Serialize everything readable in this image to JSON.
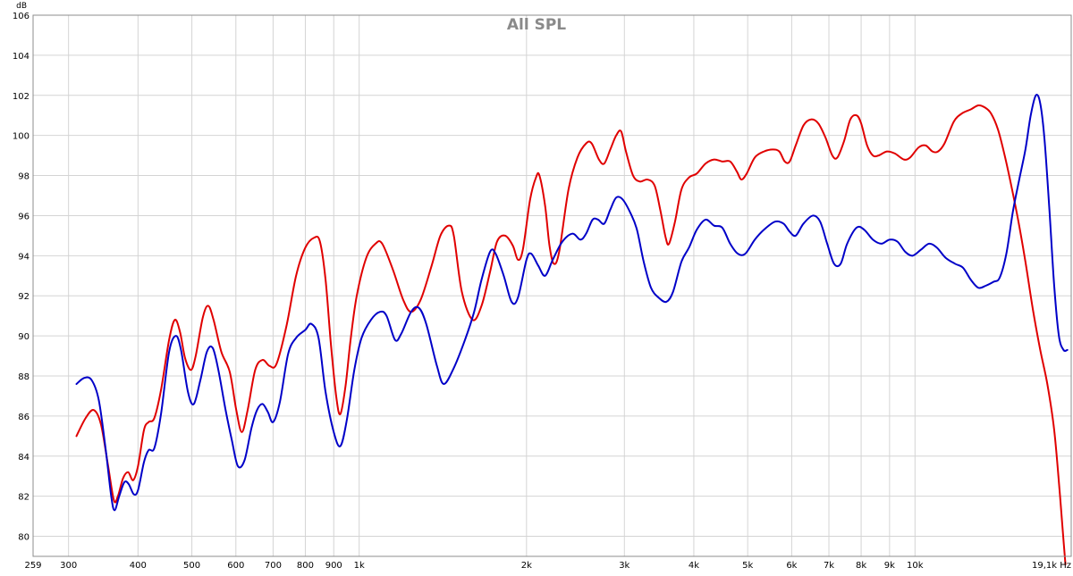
{
  "chart_data": {
    "type": "line",
    "title": "All SPL",
    "ylabel": "dB",
    "x_unit_label": "19,1k Hz",
    "x_scale": "log",
    "xlim": [
      259,
      19100
    ],
    "ylim": [
      79,
      106
    ],
    "grid": true,
    "y_ticks": [
      80,
      82,
      84,
      86,
      88,
      90,
      92,
      94,
      96,
      98,
      100,
      102,
      104,
      106
    ],
    "x_ticks": [
      {
        "value": 259,
        "label": "259"
      },
      {
        "value": 300,
        "label": "300"
      },
      {
        "value": 400,
        "label": "400"
      },
      {
        "value": 500,
        "label": "500"
      },
      {
        "value": 600,
        "label": "600"
      },
      {
        "value": 700,
        "label": "700"
      },
      {
        "value": 800,
        "label": "800"
      },
      {
        "value": 900,
        "label": "900"
      },
      {
        "value": 1000,
        "label": "1k"
      },
      {
        "value": 2000,
        "label": "2k"
      },
      {
        "value": 3000,
        "label": "3k"
      },
      {
        "value": 4000,
        "label": "4k"
      },
      {
        "value": 5000,
        "label": "5k"
      },
      {
        "value": 6000,
        "label": "6k"
      },
      {
        "value": 7000,
        "label": "7k"
      },
      {
        "value": 8000,
        "label": "8k"
      },
      {
        "value": 9000,
        "label": "9k"
      },
      {
        "value": 10000,
        "label": "10k"
      }
    ],
    "series": [
      {
        "color": "#e00000",
        "points": [
          [
            310,
            85.0
          ],
          [
            322,
            85.9
          ],
          [
            333,
            86.3
          ],
          [
            343,
            85.6
          ],
          [
            353,
            83.6
          ],
          [
            362,
            81.8
          ],
          [
            368,
            82.0
          ],
          [
            376,
            82.9
          ],
          [
            384,
            83.2
          ],
          [
            392,
            82.8
          ],
          [
            400,
            83.5
          ],
          [
            410,
            85.3
          ],
          [
            418,
            85.7
          ],
          [
            428,
            85.9
          ],
          [
            440,
            87.3
          ],
          [
            455,
            89.8
          ],
          [
            466,
            90.8
          ],
          [
            476,
            90.2
          ],
          [
            486,
            88.9
          ],
          [
            498,
            88.3
          ],
          [
            508,
            89.0
          ],
          [
            523,
            90.9
          ],
          [
            535,
            91.5
          ],
          [
            547,
            90.8
          ],
          [
            565,
            89.2
          ],
          [
            585,
            88.2
          ],
          [
            601,
            86.3
          ],
          [
            615,
            85.2
          ],
          [
            630,
            86.3
          ],
          [
            650,
            88.3
          ],
          [
            670,
            88.8
          ],
          [
            690,
            88.5
          ],
          [
            710,
            88.6
          ],
          [
            740,
            90.5
          ],
          [
            770,
            93.0
          ],
          [
            800,
            94.4
          ],
          [
            830,
            94.9
          ],
          [
            850,
            94.7
          ],
          [
            870,
            92.8
          ],
          [
            890,
            89.5
          ],
          [
            910,
            86.9
          ],
          [
            925,
            86.1
          ],
          [
            945,
            87.5
          ],
          [
            965,
            89.8
          ],
          [
            990,
            92.0
          ],
          [
            1030,
            93.9
          ],
          [
            1070,
            94.6
          ],
          [
            1100,
            94.6
          ],
          [
            1150,
            93.3
          ],
          [
            1200,
            91.8
          ],
          [
            1240,
            91.2
          ],
          [
            1290,
            91.8
          ],
          [
            1350,
            93.5
          ],
          [
            1400,
            95.0
          ],
          [
            1450,
            95.5
          ],
          [
            1480,
            95.0
          ],
          [
            1530,
            92.2
          ],
          [
            1600,
            90.8
          ],
          [
            1660,
            91.5
          ],
          [
            1720,
            93.2
          ],
          [
            1770,
            94.7
          ],
          [
            1830,
            95.0
          ],
          [
            1890,
            94.5
          ],
          [
            1930,
            93.8
          ],
          [
            1970,
            94.3
          ],
          [
            2030,
            96.8
          ],
          [
            2080,
            97.9
          ],
          [
            2110,
            98.0
          ],
          [
            2160,
            96.5
          ],
          [
            2200,
            94.5
          ],
          [
            2240,
            93.6
          ],
          [
            2290,
            94.2
          ],
          [
            2380,
            97.3
          ],
          [
            2470,
            98.9
          ],
          [
            2560,
            99.6
          ],
          [
            2620,
            99.6
          ],
          [
            2700,
            98.8
          ],
          [
            2760,
            98.6
          ],
          [
            2830,
            99.3
          ],
          [
            2900,
            100.0
          ],
          [
            2960,
            100.2
          ],
          [
            3020,
            99.2
          ],
          [
            3110,
            98.0
          ],
          [
            3200,
            97.7
          ],
          [
            3300,
            97.8
          ],
          [
            3400,
            97.5
          ],
          [
            3480,
            96.3
          ],
          [
            3560,
            94.9
          ],
          [
            3610,
            94.6
          ],
          [
            3700,
            95.7
          ],
          [
            3800,
            97.3
          ],
          [
            3920,
            97.9
          ],
          [
            4050,
            98.1
          ],
          [
            4200,
            98.6
          ],
          [
            4350,
            98.8
          ],
          [
            4500,
            98.7
          ],
          [
            4650,
            98.7
          ],
          [
            4780,
            98.2
          ],
          [
            4870,
            97.8
          ],
          [
            4980,
            98.1
          ],
          [
            5150,
            98.9
          ],
          [
            5350,
            99.2
          ],
          [
            5550,
            99.3
          ],
          [
            5700,
            99.2
          ],
          [
            5830,
            98.7
          ],
          [
            5950,
            98.7
          ],
          [
            6100,
            99.5
          ],
          [
            6300,
            100.5
          ],
          [
            6500,
            100.8
          ],
          [
            6700,
            100.6
          ],
          [
            6900,
            99.9
          ],
          [
            7100,
            99.0
          ],
          [
            7250,
            98.9
          ],
          [
            7450,
            99.7
          ],
          [
            7650,
            100.8
          ],
          [
            7850,
            101.0
          ],
          [
            8000,
            100.6
          ],
          [
            8200,
            99.5
          ],
          [
            8400,
            99.0
          ],
          [
            8600,
            99.0
          ],
          [
            8900,
            99.2
          ],
          [
            9200,
            99.1
          ],
          [
            9550,
            98.8
          ],
          [
            9800,
            98.9
          ],
          [
            10150,
            99.4
          ],
          [
            10450,
            99.5
          ],
          [
            10750,
            99.2
          ],
          [
            11000,
            99.2
          ],
          [
            11300,
            99.6
          ],
          [
            11750,
            100.7
          ],
          [
            12150,
            101.1
          ],
          [
            12600,
            101.3
          ],
          [
            13000,
            101.5
          ],
          [
            13350,
            101.4
          ],
          [
            13700,
            101.1
          ],
          [
            14100,
            100.3
          ],
          [
            14500,
            99.0
          ],
          [
            14900,
            97.5
          ],
          [
            15350,
            95.7
          ],
          [
            15800,
            93.7
          ],
          [
            16300,
            91.3
          ],
          [
            16800,
            89.3
          ],
          [
            17300,
            87.6
          ],
          [
            17800,
            85.3
          ],
          [
            18200,
            82.3
          ],
          [
            18500,
            79.8
          ],
          [
            18650,
            78.6
          ]
        ]
      },
      {
        "color": "#0000c8",
        "points": [
          [
            310,
            87.6
          ],
          [
            320,
            87.9
          ],
          [
            330,
            87.8
          ],
          [
            340,
            86.8
          ],
          [
            350,
            84.3
          ],
          [
            358,
            82.0
          ],
          [
            363,
            81.3
          ],
          [
            370,
            82.0
          ],
          [
            378,
            82.7
          ],
          [
            385,
            82.6
          ],
          [
            393,
            82.1
          ],
          [
            400,
            82.3
          ],
          [
            410,
            83.7
          ],
          [
            418,
            84.3
          ],
          [
            428,
            84.4
          ],
          [
            440,
            86.1
          ],
          [
            455,
            89.2
          ],
          [
            468,
            90.0
          ],
          [
            478,
            89.3
          ],
          [
            492,
            87.2
          ],
          [
            504,
            86.6
          ],
          [
            518,
            87.8
          ],
          [
            532,
            89.2
          ],
          [
            545,
            89.4
          ],
          [
            558,
            88.3
          ],
          [
            575,
            86.3
          ],
          [
            590,
            84.8
          ],
          [
            605,
            83.5
          ],
          [
            622,
            83.8
          ],
          [
            640,
            85.4
          ],
          [
            655,
            86.3
          ],
          [
            670,
            86.6
          ],
          [
            685,
            86.2
          ],
          [
            700,
            85.7
          ],
          [
            720,
            86.7
          ],
          [
            745,
            89.1
          ],
          [
            770,
            89.9
          ],
          [
            800,
            90.3
          ],
          [
            820,
            90.6
          ],
          [
            845,
            89.9
          ],
          [
            870,
            87.2
          ],
          [
            900,
            85.2
          ],
          [
            925,
            84.5
          ],
          [
            950,
            85.8
          ],
          [
            980,
            88.3
          ],
          [
            1010,
            89.9
          ],
          [
            1050,
            90.8
          ],
          [
            1090,
            91.2
          ],
          [
            1120,
            91.0
          ],
          [
            1160,
            89.8
          ],
          [
            1190,
            90.1
          ],
          [
            1240,
            91.2
          ],
          [
            1280,
            91.4
          ],
          [
            1320,
            90.6
          ],
          [
            1380,
            88.5
          ],
          [
            1420,
            87.6
          ],
          [
            1480,
            88.4
          ],
          [
            1550,
            89.8
          ],
          [
            1610,
            91.2
          ],
          [
            1660,
            92.8
          ],
          [
            1720,
            94.2
          ],
          [
            1760,
            94.1
          ],
          [
            1820,
            93.0
          ],
          [
            1880,
            91.7
          ],
          [
            1930,
            91.9
          ],
          [
            2000,
            93.8
          ],
          [
            2040,
            94.1
          ],
          [
            2100,
            93.5
          ],
          [
            2160,
            93.0
          ],
          [
            2230,
            93.8
          ],
          [
            2320,
            94.7
          ],
          [
            2420,
            95.1
          ],
          [
            2500,
            94.8
          ],
          [
            2560,
            95.1
          ],
          [
            2630,
            95.8
          ],
          [
            2690,
            95.8
          ],
          [
            2760,
            95.6
          ],
          [
            2830,
            96.3
          ],
          [
            2900,
            96.9
          ],
          [
            2980,
            96.8
          ],
          [
            3080,
            96.1
          ],
          [
            3160,
            95.3
          ],
          [
            3250,
            93.7
          ],
          [
            3350,
            92.4
          ],
          [
            3460,
            91.9
          ],
          [
            3570,
            91.7
          ],
          [
            3670,
            92.2
          ],
          [
            3800,
            93.7
          ],
          [
            3920,
            94.4
          ],
          [
            4050,
            95.3
          ],
          [
            4200,
            95.8
          ],
          [
            4350,
            95.5
          ],
          [
            4500,
            95.4
          ],
          [
            4650,
            94.6
          ],
          [
            4800,
            94.1
          ],
          [
            4950,
            94.1
          ],
          [
            5150,
            94.8
          ],
          [
            5350,
            95.3
          ],
          [
            5600,
            95.7
          ],
          [
            5800,
            95.6
          ],
          [
            5950,
            95.2
          ],
          [
            6100,
            95.0
          ],
          [
            6300,
            95.6
          ],
          [
            6550,
            96.0
          ],
          [
            6750,
            95.7
          ],
          [
            6950,
            94.6
          ],
          [
            7150,
            93.6
          ],
          [
            7350,
            93.6
          ],
          [
            7550,
            94.6
          ],
          [
            7850,
            95.4
          ],
          [
            8100,
            95.3
          ],
          [
            8400,
            94.8
          ],
          [
            8700,
            94.6
          ],
          [
            9000,
            94.8
          ],
          [
            9300,
            94.7
          ],
          [
            9600,
            94.2
          ],
          [
            9900,
            94.0
          ],
          [
            10250,
            94.3
          ],
          [
            10600,
            94.6
          ],
          [
            10950,
            94.4
          ],
          [
            11350,
            93.9
          ],
          [
            11800,
            93.6
          ],
          [
            12200,
            93.4
          ],
          [
            12600,
            92.8
          ],
          [
            13000,
            92.4
          ],
          [
            13400,
            92.5
          ],
          [
            13850,
            92.7
          ],
          [
            14200,
            92.9
          ],
          [
            14600,
            94.1
          ],
          [
            15000,
            96.2
          ],
          [
            15400,
            97.8
          ],
          [
            15800,
            99.3
          ],
          [
            16150,
            101.0
          ],
          [
            16500,
            102.0
          ],
          [
            16800,
            101.6
          ],
          [
            17100,
            99.8
          ],
          [
            17450,
            96.3
          ],
          [
            17800,
            92.5
          ],
          [
            18150,
            90.0
          ],
          [
            18500,
            89.3
          ],
          [
            18800,
            89.3
          ]
        ]
      }
    ]
  }
}
